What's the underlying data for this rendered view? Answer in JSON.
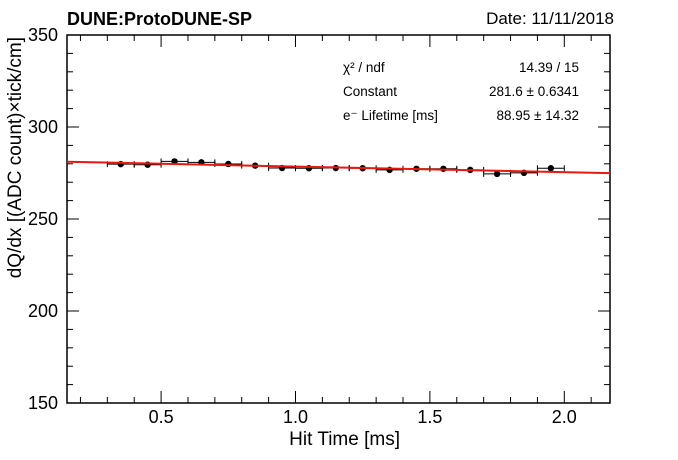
{
  "header": {
    "title": "DUNE:ProtoDUNE-SP",
    "date": "Date: 11/11/2018"
  },
  "chart_data": {
    "type": "scatter",
    "title": "DUNE:ProtoDUNE-SP",
    "xlabel": "Hit Time [ms]",
    "ylabel": "dQ/dx [(ADC count)×tick/cm]",
    "xlim": [
      0.15,
      2.17
    ],
    "ylim": [
      150,
      350
    ],
    "x_ticks": [
      0.5,
      1.0,
      1.5,
      2.0
    ],
    "x_tick_labels": [
      "0.5",
      "1.0",
      "1.5",
      "2.0"
    ],
    "y_ticks": [
      150,
      200,
      250,
      300,
      350
    ],
    "y_tick_labels": [
      "150",
      "200",
      "250",
      "300",
      "350"
    ],
    "grid": false,
    "series": [
      {
        "type": "points_with_errors",
        "x": [
          0.35,
          0.45,
          0.55,
          0.65,
          0.75,
          0.85,
          0.95,
          1.05,
          1.15,
          1.25,
          1.35,
          1.45,
          1.55,
          1.65,
          1.75,
          1.85,
          1.95
        ],
        "y": [
          279.8,
          279.5,
          281.3,
          280.8,
          279.9,
          279.0,
          277.7,
          277.6,
          277.7,
          277.6,
          276.7,
          277.3,
          277.3,
          276.7,
          274.5,
          275.1,
          277.6
        ],
        "x_err": 0.05,
        "y_err": [
          0.6,
          0.6,
          0.6,
          0.6,
          0.6,
          0.6,
          0.6,
          0.6,
          0.6,
          0.6,
          0.6,
          0.6,
          0.6,
          0.6,
          0.6,
          0.6,
          0.6
        ],
        "color": "#000000"
      },
      {
        "type": "fit_line",
        "function": "exponential",
        "x": [
          0.15,
          2.17
        ],
        "y": [
          281.1,
          274.9
        ],
        "color": "#e8170f"
      }
    ],
    "stats_box": [
      {
        "label": "χ² / ndf",
        "value": "14.39 / 15"
      },
      {
        "label": "Constant",
        "value": "281.6 ± 0.6341"
      },
      {
        "label": "e⁻ Lifetime [ms]",
        "value": "88.95 ± 14.32"
      }
    ]
  }
}
